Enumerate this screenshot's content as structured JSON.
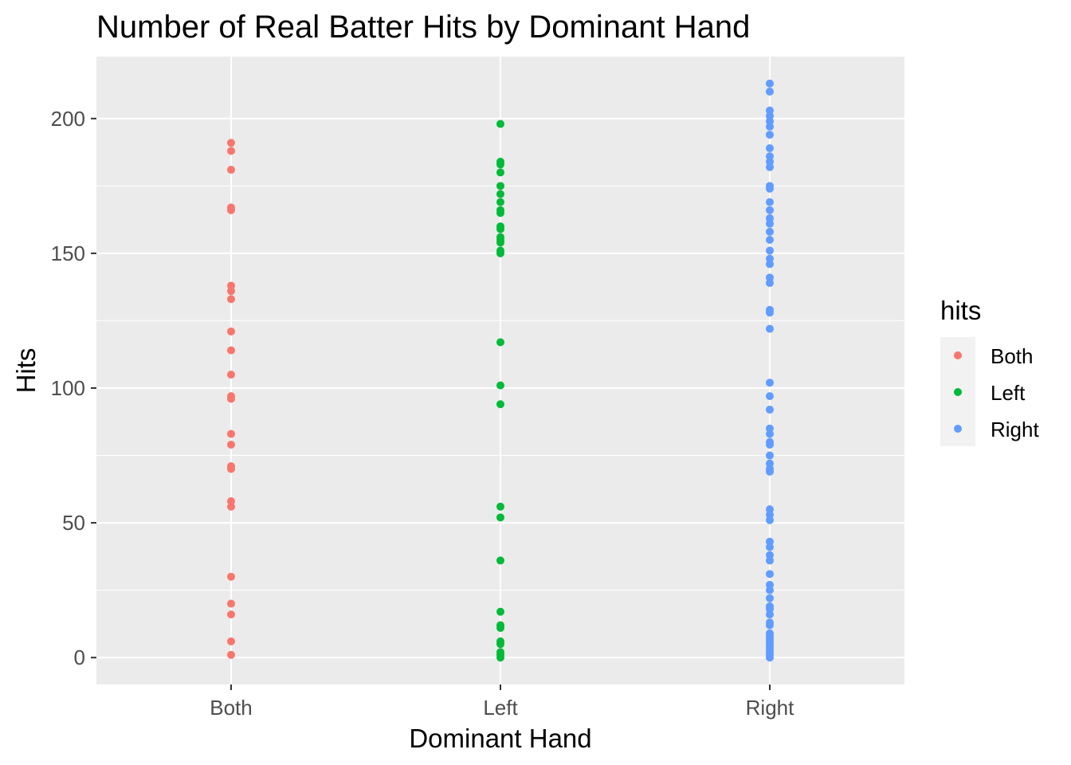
{
  "chart_data": {
    "type": "scatter",
    "title": "Number of Real Batter Hits by Dominant Hand",
    "xlabel": "Dominant Hand",
    "ylabel": "Hits",
    "categories": [
      "Both",
      "Left",
      "Right"
    ],
    "ylim": [
      -10,
      223
    ],
    "yticks": [
      0,
      50,
      100,
      150,
      200
    ],
    "ytick_labels": [
      "0",
      "50",
      "100",
      "150",
      "200"
    ],
    "grid": true,
    "legend": {
      "title": "hits",
      "position": "right",
      "entries": [
        "Both",
        "Left",
        "Right"
      ]
    },
    "colors": {
      "Both": "#F8766D",
      "Left": "#00BA38",
      "Right": "#619CFF",
      "panel_background": "#EBEBEB",
      "grid_major": "#FFFFFF"
    },
    "series": [
      {
        "name": "Both",
        "x": "Both",
        "values": [
          191,
          188,
          181,
          167,
          166,
          138,
          136,
          133,
          121,
          114,
          105,
          97,
          96,
          83,
          79,
          71,
          70,
          58,
          56,
          30,
          20,
          16,
          6,
          1
        ]
      },
      {
        "name": "Left",
        "x": "Left",
        "values": [
          198,
          184,
          183,
          180,
          175,
          172,
          169,
          166,
          165,
          160,
          159,
          156,
          155,
          154,
          151,
          150,
          117,
          101,
          94,
          56,
          52,
          36,
          17,
          12,
          11,
          6,
          5,
          2,
          1,
          0
        ]
      },
      {
        "name": "Right",
        "x": "Right",
        "values": [
          213,
          210,
          203,
          201,
          199,
          197,
          194,
          189,
          186,
          184,
          182,
          175,
          174,
          169,
          166,
          163,
          161,
          158,
          155,
          151,
          148,
          146,
          141,
          139,
          129,
          128,
          122,
          102,
          97,
          92,
          85,
          83,
          80,
          79,
          75,
          72,
          70,
          69,
          55,
          53,
          51,
          43,
          41,
          38,
          36,
          31,
          27,
          25,
          22,
          19,
          18,
          16,
          13,
          12,
          9,
          8,
          7,
          6,
          5,
          4,
          3,
          2,
          1,
          0
        ]
      }
    ]
  }
}
